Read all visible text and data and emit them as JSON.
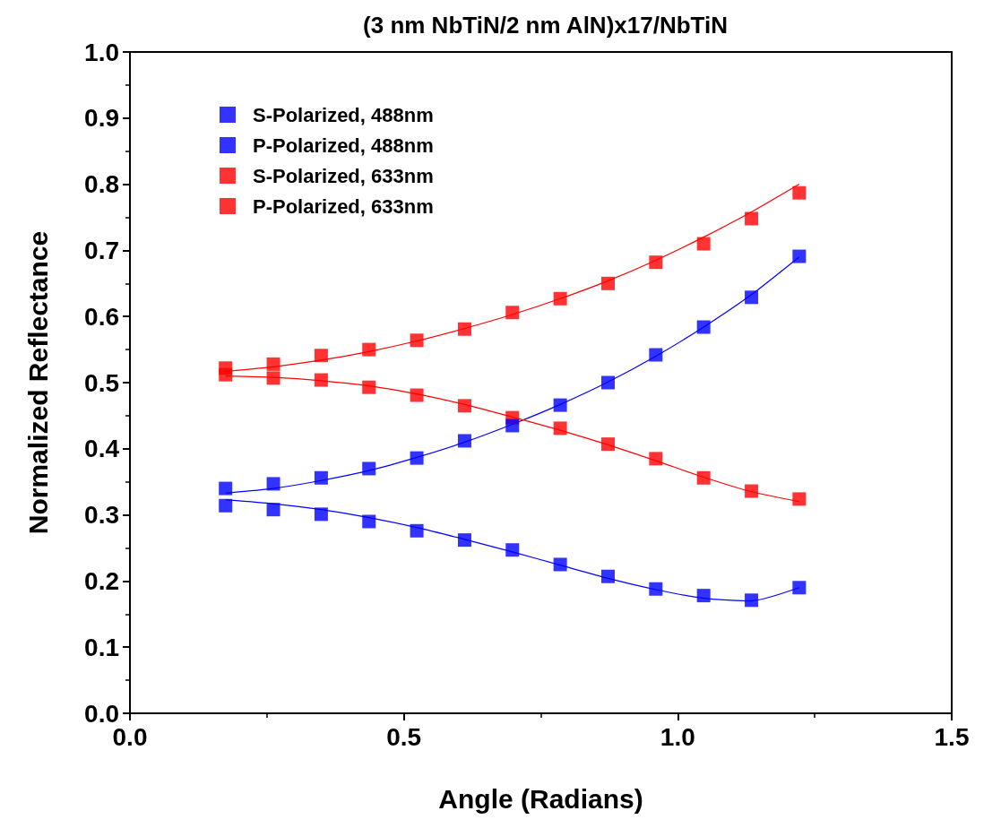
{
  "chart_data": {
    "type": "scatter",
    "title": "(3 nm NbTiN/2 nm AlN)x17/NbTiN",
    "xlabel": "Angle (Radians)",
    "ylabel": "Normalized Reflectance",
    "x": [
      0.1745,
      0.2618,
      0.3491,
      0.4363,
      0.5236,
      0.6109,
      0.6981,
      0.7854,
      0.8727,
      0.9599,
      1.0472,
      1.1345,
      1.2217
    ],
    "series": [
      {
        "name": "S-Polarized, 488nm",
        "color": "#0000ff",
        "marker": "square",
        "values": [
          0.34,
          0.347,
          0.356,
          0.37,
          0.386,
          0.412,
          0.435,
          0.466,
          0.5,
          0.542,
          0.584,
          0.629,
          0.691
        ]
      },
      {
        "name": "P-Polarized, 488nm",
        "color": "#0000ff",
        "marker": "square",
        "values": [
          0.314,
          0.308,
          0.301,
          0.29,
          0.276,
          0.262,
          0.247,
          0.225,
          0.207,
          0.188,
          0.178,
          0.171,
          0.19
        ]
      },
      {
        "name": "S-Polarized, 633nm",
        "color": "#ff0000",
        "marker": "square",
        "values": [
          0.522,
          0.528,
          0.541,
          0.55,
          0.564,
          0.581,
          0.606,
          0.627,
          0.65,
          0.682,
          0.71,
          0.748,
          0.787
        ]
      },
      {
        "name": "P-Polarized, 633nm",
        "color": "#ff0000",
        "marker": "square",
        "values": [
          0.512,
          0.507,
          0.504,
          0.493,
          0.481,
          0.465,
          0.447,
          0.431,
          0.407,
          0.385,
          0.356,
          0.336,
          0.324
        ]
      },
      {
        "type": "line",
        "color": "#0000ff",
        "marker": "none",
        "values": [
          0.333,
          0.34,
          0.352,
          0.367,
          0.387,
          0.41,
          0.437,
          0.467,
          0.501,
          0.54,
          0.584,
          0.633,
          0.69
        ]
      },
      {
        "type": "line",
        "color": "#0000ff",
        "marker": "none",
        "values": [
          0.323,
          0.317,
          0.308,
          0.296,
          0.281,
          0.263,
          0.244,
          0.224,
          0.204,
          0.187,
          0.174,
          0.17,
          0.19
        ]
      },
      {
        "type": "line",
        "color": "#ff0000",
        "marker": "none",
        "values": [
          0.517,
          0.524,
          0.534,
          0.547,
          0.563,
          0.582,
          0.603,
          0.627,
          0.654,
          0.685,
          0.72,
          0.758,
          0.8
        ]
      },
      {
        "type": "line",
        "color": "#ff0000",
        "marker": "none",
        "values": [
          0.51,
          0.508,
          0.503,
          0.495,
          0.483,
          0.467,
          0.448,
          0.428,
          0.406,
          0.382,
          0.357,
          0.335,
          0.32
        ]
      }
    ],
    "xlim": [
      0,
      1.5
    ],
    "xticks": [
      {
        "value": 0,
        "label": "0.0"
      },
      0.5,
      {
        "value": 1,
        "label": "1.0"
      },
      1.5
    ],
    "ylim": [
      0,
      1
    ],
    "yticks": [
      {
        "value": 0,
        "label": "0.0"
      },
      0.1,
      0.2,
      0.3,
      0.4,
      0.5,
      0.6,
      0.7,
      0.8,
      0.9,
      {
        "value": 1,
        "label": "1.0"
      }
    ],
    "legend": "top left",
    "grid": false
  }
}
